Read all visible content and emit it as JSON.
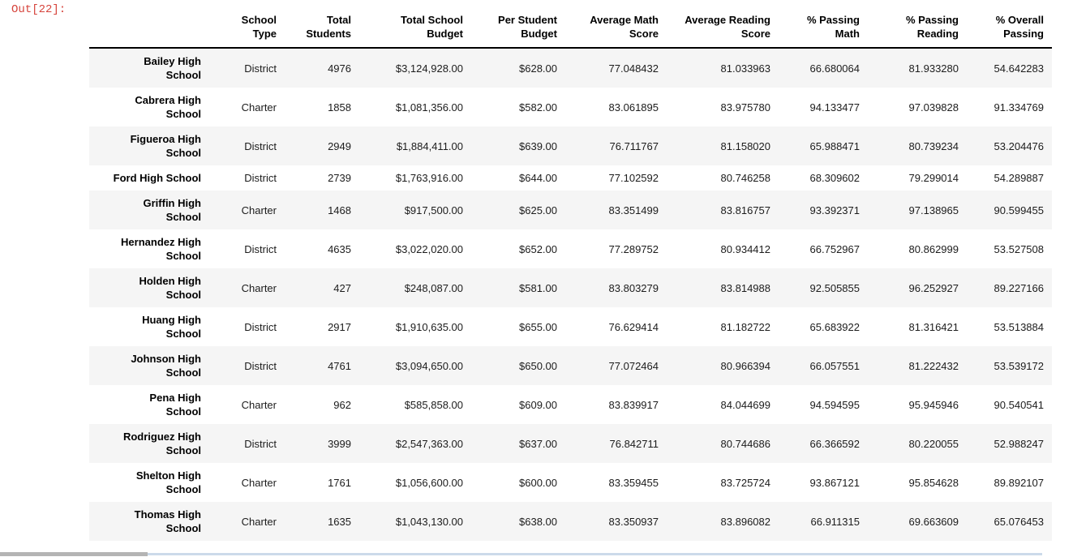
{
  "prompt": {
    "label": "Out[22]:"
  },
  "table": {
    "index_header": "",
    "columns": [
      "School\nType",
      "Total\nStudents",
      "Total School\nBudget",
      "Per Student\nBudget",
      "Average Math\nScore",
      "Average Reading\nScore",
      "% Passing\nMath",
      "% Passing\nReading",
      "% Overall\nPassing"
    ],
    "rows": [
      {
        "name": "Bailey High\nSchool",
        "values": [
          "District",
          "4976",
          "$3,124,928.00",
          "$628.00",
          "77.048432",
          "81.033963",
          "66.680064",
          "81.933280",
          "54.642283"
        ]
      },
      {
        "name": "Cabrera High\nSchool",
        "values": [
          "Charter",
          "1858",
          "$1,081,356.00",
          "$582.00",
          "83.061895",
          "83.975780",
          "94.133477",
          "97.039828",
          "91.334769"
        ]
      },
      {
        "name": "Figueroa High\nSchool",
        "values": [
          "District",
          "2949",
          "$1,884,411.00",
          "$639.00",
          "76.711767",
          "81.158020",
          "65.988471",
          "80.739234",
          "53.204476"
        ]
      },
      {
        "name": "Ford High School",
        "values": [
          "District",
          "2739",
          "$1,763,916.00",
          "$644.00",
          "77.102592",
          "80.746258",
          "68.309602",
          "79.299014",
          "54.289887"
        ]
      },
      {
        "name": "Griffin High\nSchool",
        "values": [
          "Charter",
          "1468",
          "$917,500.00",
          "$625.00",
          "83.351499",
          "83.816757",
          "93.392371",
          "97.138965",
          "90.599455"
        ]
      },
      {
        "name": "Hernandez High\nSchool",
        "values": [
          "District",
          "4635",
          "$3,022,020.00",
          "$652.00",
          "77.289752",
          "80.934412",
          "66.752967",
          "80.862999",
          "53.527508"
        ]
      },
      {
        "name": "Holden High\nSchool",
        "values": [
          "Charter",
          "427",
          "$248,087.00",
          "$581.00",
          "83.803279",
          "83.814988",
          "92.505855",
          "96.252927",
          "89.227166"
        ]
      },
      {
        "name": "Huang High\nSchool",
        "values": [
          "District",
          "2917",
          "$1,910,635.00",
          "$655.00",
          "76.629414",
          "81.182722",
          "65.683922",
          "81.316421",
          "53.513884"
        ]
      },
      {
        "name": "Johnson High\nSchool",
        "values": [
          "District",
          "4761",
          "$3,094,650.00",
          "$650.00",
          "77.072464",
          "80.966394",
          "66.057551",
          "81.222432",
          "53.539172"
        ]
      },
      {
        "name": "Pena High\nSchool",
        "values": [
          "Charter",
          "962",
          "$585,858.00",
          "$609.00",
          "83.839917",
          "84.044699",
          "94.594595",
          "95.945946",
          "90.540541"
        ]
      },
      {
        "name": "Rodriguez High\nSchool",
        "values": [
          "District",
          "3999",
          "$2,547,363.00",
          "$637.00",
          "76.842711",
          "80.744686",
          "66.366592",
          "80.220055",
          "52.988247"
        ]
      },
      {
        "name": "Shelton High\nSchool",
        "values": [
          "Charter",
          "1761",
          "$1,056,600.00",
          "$600.00",
          "83.359455",
          "83.725724",
          "93.867121",
          "95.854628",
          "89.892107"
        ]
      },
      {
        "name": "Thomas High\nSchool",
        "values": [
          "Charter",
          "1635",
          "$1,043,130.00",
          "$638.00",
          "83.350937",
          "83.896082",
          "66.911315",
          "69.663609",
          "65.076453"
        ]
      }
    ]
  },
  "colors": {
    "prompt_text": "#d6443c",
    "row_stripe": "#f5f5f5",
    "header_border": "#000000",
    "scrollbar_track": "#ccdaea",
    "scrollbar_thumb": "#b4b4b4"
  }
}
